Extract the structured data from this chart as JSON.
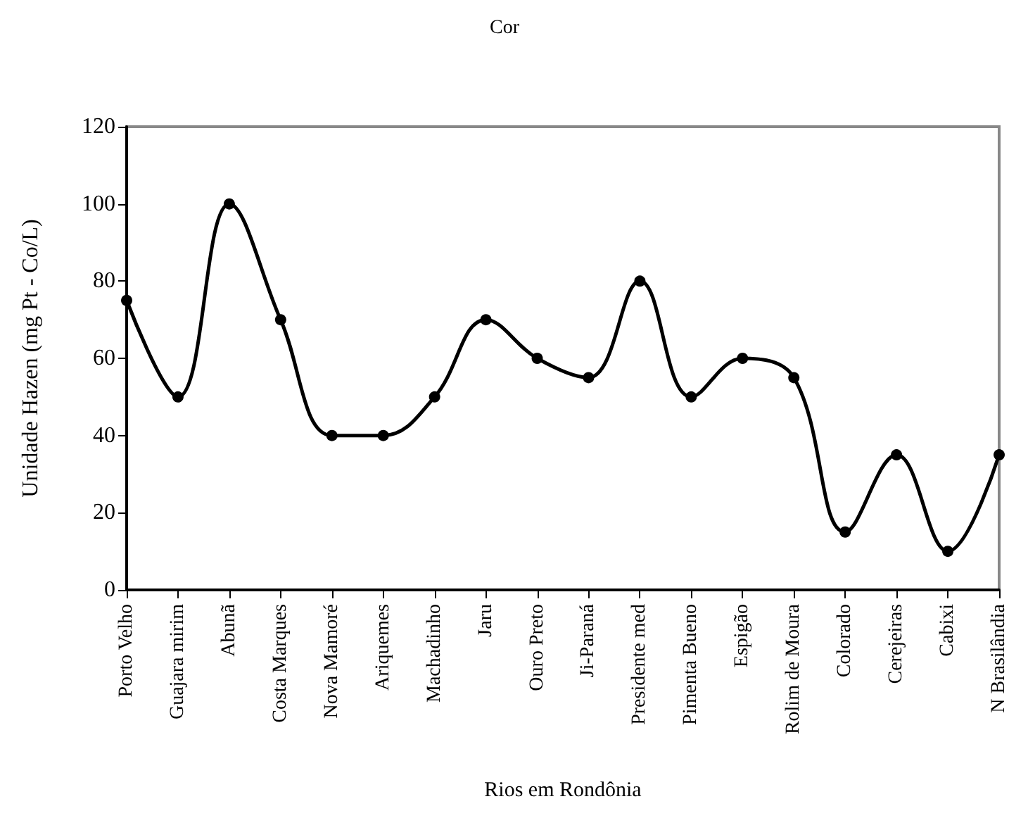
{
  "chart_data": {
    "type": "line",
    "title": "Cor",
    "xlabel": "Rios em Rondônia",
    "ylabel": "Unidade Hazen (mg Pt - Co/L)",
    "categories": [
      "Porto Velho",
      "Guajara mirim",
      "Abunã",
      "Costa Marques",
      "Nova Mamoré",
      "Ariquemes",
      "Machadinho",
      "Jaru",
      "Ouro Preto",
      "Ji-Paraná",
      "Presidente med",
      "Pimenta Bueno",
      "Espigão",
      "Rolim de Moura",
      "Colorado",
      "Cerejeiras",
      "Cabixi",
      "N Brasilândia"
    ],
    "series": [
      {
        "color": "#000000",
        "values": [
          75,
          50,
          100,
          70,
          40,
          40,
          50,
          70,
          60,
          55,
          80,
          50,
          60,
          55,
          15,
          35,
          10,
          35
        ]
      }
    ],
    "ylim": [
      0,
      120
    ],
    "yticks": [
      0,
      20,
      40,
      60,
      80,
      100,
      120
    ],
    "grid": false,
    "marker": "circle",
    "line_style": "solid"
  }
}
